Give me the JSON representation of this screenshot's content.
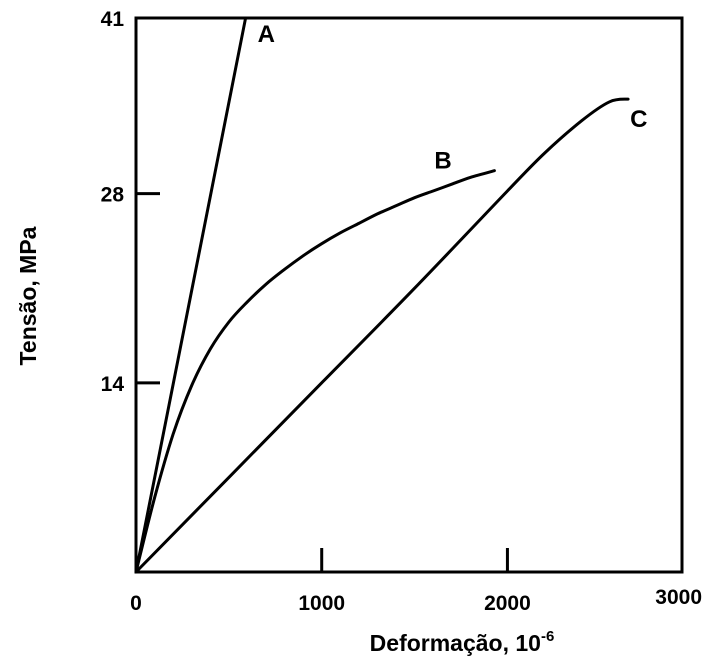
{
  "chart_data": {
    "type": "line",
    "title": "",
    "xlabel": "Deformação, 10",
    "xlabel_exponent": "-6",
    "ylabel": "Tensão, MPa",
    "xlim": [
      0,
      2940
    ],
    "ylim": [
      0,
      41
    ],
    "xticks": [
      0,
      1000,
      2000,
      3000
    ],
    "xtick_labels": [
      "0",
      "1000",
      "2000",
      "3000"
    ],
    "yticks": [
      14,
      28,
      41
    ],
    "ytick_labels": [
      "14",
      "28",
      "41"
    ],
    "grid": false,
    "legend": "none",
    "series": [
      {
        "name": "A",
        "x": [
          0,
          590
        ],
        "y": [
          0,
          41
        ]
      },
      {
        "name": "B",
        "x": [
          0,
          100,
          200,
          300,
          400,
          500,
          600,
          700,
          800,
          900,
          1000,
          1100,
          1200,
          1300,
          1400,
          1500,
          1600,
          1700,
          1800,
          1930
        ],
        "y": [
          0,
          5.5,
          10.2,
          13.8,
          16.5,
          18.5,
          20.0,
          21.3,
          22.4,
          23.4,
          24.3,
          25.1,
          25.8,
          26.5,
          27.1,
          27.7,
          28.2,
          28.7,
          29.2,
          29.7
        ]
      },
      {
        "name": "C",
        "x": [
          0,
          500,
          1000,
          1500,
          2000,
          2200,
          2400,
          2550,
          2650
        ],
        "y": [
          0,
          7.0,
          14.0,
          21.0,
          28.2,
          31.0,
          33.4,
          34.8,
          35.0
        ]
      }
    ]
  }
}
